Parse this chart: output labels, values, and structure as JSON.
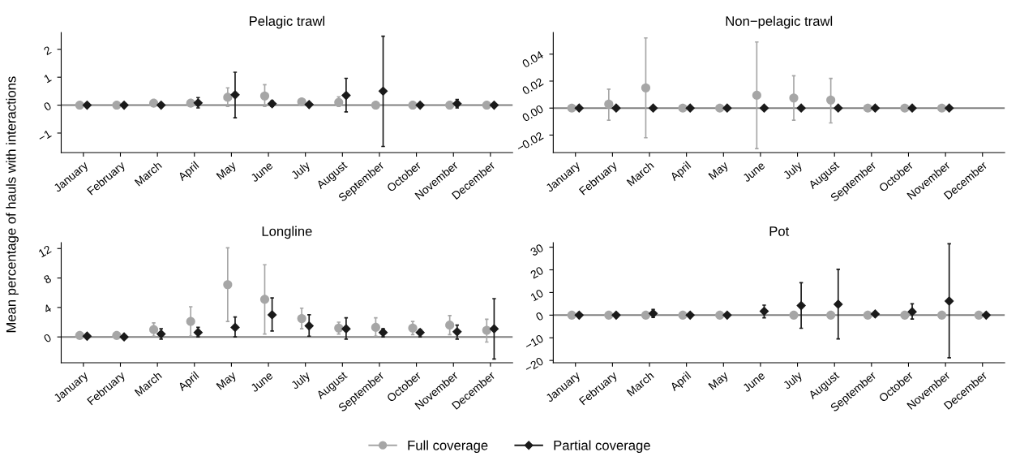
{
  "chart_data": [
    {
      "type": "scatter",
      "title": "Pelagic trawl",
      "ylabel": "Mean percentage of hauls with interactions",
      "categories": [
        "January",
        "February",
        "March",
        "April",
        "May",
        "June",
        "July",
        "August",
        "September",
        "October",
        "November",
        "December"
      ],
      "ylim": [
        -1.7,
        2.6
      ],
      "yticks": [
        {
          "value": -1,
          "label": "−1"
        },
        0,
        1,
        2
      ],
      "legend": "bottom",
      "grid": false,
      "ref_lines": [
        {
          "axis": "y",
          "value": 0,
          "color": "#808080"
        }
      ],
      "series": [
        {
          "name": "Full coverage",
          "color": "#a6a6a6",
          "marker": "circle",
          "values": [
            0,
            0,
            0.07,
            0.07,
            0.28,
            0.33,
            0.12,
            0.1,
            0,
            0,
            0,
            0
          ],
          "errors": [
            null,
            null,
            null,
            null,
            [
              -0.05,
              0.62
            ],
            [
              -0.05,
              0.73
            ],
            null,
            [
              -0.05,
              0.3
            ],
            null,
            null,
            null,
            null
          ]
        },
        {
          "name": "Partial coverage",
          "color": "#1a1a1a",
          "marker": "diamond",
          "values": [
            0,
            0,
            0,
            0.08,
            0.37,
            0.05,
            0.02,
            0.35,
            0.5,
            0,
            0.05,
            0
          ],
          "errors": [
            null,
            null,
            null,
            [
              -0.1,
              0.27
            ],
            [
              -0.45,
              1.18
            ],
            [
              -0.05,
              0.15
            ],
            null,
            [
              -0.24,
              0.96
            ],
            [
              -1.48,
              2.47
            ],
            null,
            [
              -0.1,
              0.2
            ],
            null
          ]
        }
      ]
    },
    {
      "type": "scatter",
      "title": "Non−pelagic trawl",
      "categories": [
        "January",
        "February",
        "March",
        "April",
        "May",
        "June",
        "July",
        "August",
        "September",
        "October",
        "November",
        "December"
      ],
      "ylim": [
        -0.033,
        0.056
      ],
      "yticks": [
        {
          "value": -0.02,
          "label": "−0.02"
        },
        {
          "value": 0,
          "label": "0.00"
        },
        {
          "value": 0.02,
          "label": "0.02"
        },
        {
          "value": 0.04,
          "label": "0.04"
        }
      ],
      "grid": false,
      "ref_lines": [
        {
          "axis": "y",
          "value": 0,
          "color": "#808080"
        }
      ],
      "series": [
        {
          "color": "#a6a6a6",
          "marker": "circle",
          "values": [
            0,
            0.003,
            0.015,
            0,
            0,
            0.0095,
            0.0075,
            0.006,
            0,
            0,
            0,
            null
          ],
          "errors": [
            null,
            [
              -0.009,
              0.014
            ],
            [
              -0.022,
              0.052
            ],
            null,
            null,
            [
              -0.03,
              0.049
            ],
            [
              -0.009,
              0.024
            ],
            [
              -0.011,
              0.022
            ],
            null,
            null,
            null,
            null
          ]
        },
        {
          "color": "#1a1a1a",
          "marker": "diamond",
          "values": [
            0,
            0,
            0,
            0,
            0,
            0,
            0,
            0,
            0,
            0,
            0,
            null
          ]
        }
      ]
    },
    {
      "type": "scatter",
      "title": "Longline",
      "categories": [
        "January",
        "February",
        "March",
        "April",
        "May",
        "June",
        "July",
        "August",
        "September",
        "October",
        "November",
        "December"
      ],
      "ylim": [
        -3.5,
        12.8
      ],
      "yticks": [
        0,
        4,
        8,
        12
      ],
      "grid": false,
      "ref_lines": [
        {
          "axis": "y",
          "value": 0,
          "color": "#808080"
        }
      ],
      "series": [
        {
          "color": "#a6a6a6",
          "marker": "circle",
          "values": [
            0.2,
            0.2,
            1.0,
            2.1,
            7.1,
            5.1,
            2.5,
            1.2,
            1.3,
            1.2,
            1.6,
            0.9
          ],
          "errors": [
            null,
            null,
            [
              0.1,
              1.9
            ],
            [
              0.1,
              4.1
            ],
            [
              2.1,
              12.1
            ],
            [
              0.4,
              9.8
            ],
            [
              1.1,
              3.9
            ],
            [
              0.4,
              2.0
            ],
            [
              0.1,
              2.6
            ],
            [
              0.3,
              2.1
            ],
            [
              0.3,
              2.9
            ],
            [
              -0.7,
              2.4
            ]
          ]
        },
        {
          "color": "#1a1a1a",
          "marker": "diamond",
          "values": [
            0.1,
            0,
            0.4,
            0.6,
            1.3,
            3.0,
            1.5,
            1.1,
            0.6,
            0.6,
            0.7,
            1.1
          ],
          "errors": [
            null,
            null,
            [
              -0.3,
              1.1
            ],
            [
              0,
              1.3
            ],
            [
              0,
              2.7
            ],
            [
              0.8,
              5.3
            ],
            [
              0.1,
              3.0
            ],
            [
              -0.3,
              2.6
            ],
            [
              0,
              1.1
            ],
            [
              0,
              1.0
            ],
            [
              -0.3,
              1.6
            ],
            [
              -3.0,
              5.2
            ]
          ]
        }
      ]
    },
    {
      "type": "scatter",
      "title": "Pot",
      "categories": [
        "January",
        "February",
        "March",
        "April",
        "May",
        "June",
        "July",
        "August",
        "September",
        "October",
        "November",
        "December"
      ],
      "ylim": [
        -21,
        32
      ],
      "yticks": [
        {
          "value": -20,
          "label": "−20"
        },
        {
          "value": -10,
          "label": "−10"
        },
        0,
        10,
        20,
        30
      ],
      "grid": false,
      "ref_lines": [
        {
          "axis": "y",
          "value": 0,
          "color": "#808080"
        }
      ],
      "series": [
        {
          "color": "#a6a6a6",
          "marker": "circle",
          "values": [
            0,
            0,
            0,
            0,
            0,
            null,
            0,
            0,
            0,
            0,
            0,
            0
          ]
        },
        {
          "color": "#1a1a1a",
          "marker": "diamond",
          "values": [
            0,
            0,
            0.7,
            0,
            0,
            1.7,
            4.2,
            4.8,
            0.5,
            1.5,
            6.2,
            0
          ],
          "errors": [
            null,
            null,
            [
              -1,
              2.5
            ],
            null,
            null,
            [
              -1.2,
              4.4
            ],
            [
              -5.8,
              14.3
            ],
            [
              -10.5,
              20.2
            ],
            null,
            [
              -1.7,
              5
            ],
            [
              -18.8,
              31.5
            ],
            null
          ]
        }
      ]
    }
  ]
}
